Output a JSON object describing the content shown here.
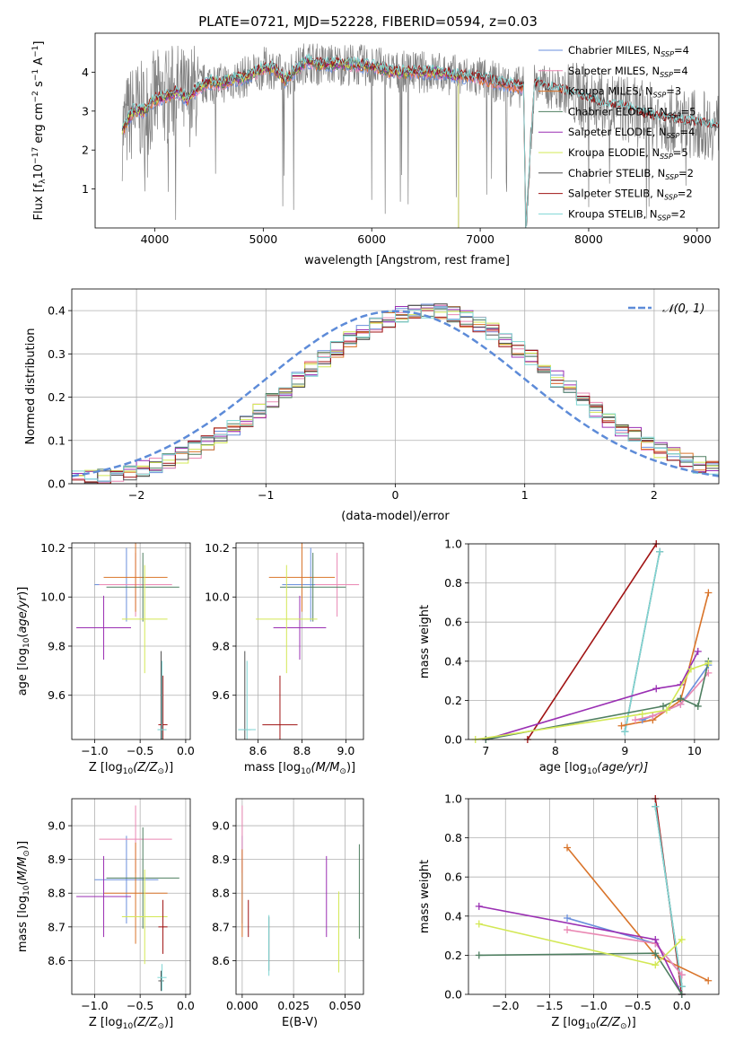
{
  "colors": {
    "Chabrier MILES": "#6a8fdc",
    "Salpeter MILES": "#ea88b3",
    "Kroupa MILES": "#d9742a",
    "Chabrier ELODIE": "#4f7f61",
    "Salpeter ELODIE": "#9a2fb3",
    "Kroupa ELODIE": "#d3e855",
    "Chabrier STELIB": "#505050",
    "Salpeter STELIB": "#a11414",
    "Kroupa STELIB": "#7fd6d4"
  },
  "chart_data": [
    {
      "id": "spectrum",
      "type": "line",
      "title": "PLATE=0721, MJD=52228, FIBERID=0594, z=0.03",
      "xlabel": "wavelength [Angstrom, rest frame]",
      "ylabel": "Flux [f_λ10^-17 erg cm^-2 s^-1 A^-1]",
      "xlim": [
        3450,
        9200
      ],
      "ylim": [
        0,
        5
      ],
      "xticks": [
        4000,
        5000,
        6000,
        7000,
        8000,
        9000
      ],
      "yticks": [
        1,
        2,
        3,
        4
      ],
      "legend_position": "top-right",
      "legend": [
        {
          "model": "Chabrier MILES",
          "label": "Chabrier MILES, N",
          "sub": "SSP",
          "suffix": "=4"
        },
        {
          "model": "Salpeter MILES",
          "label": "Salpeter MILES, N",
          "sub": "SSP",
          "suffix": "=4"
        },
        {
          "model": "Kroupa MILES",
          "label": "Kroupa MILES, N",
          "sub": "SSP",
          "suffix": "=3"
        },
        {
          "model": "Chabrier ELODIE",
          "label": "Chabrier ELODIE, N",
          "sub": "SSP",
          "suffix": "=5"
        },
        {
          "model": "Salpeter ELODIE",
          "label": "Salpeter ELODIE, N",
          "sub": "SSP",
          "suffix": "=4"
        },
        {
          "model": "Kroupa ELODIE",
          "label": "Kroupa ELODIE, N",
          "sub": "SSP",
          "suffix": "=5"
        },
        {
          "model": "Chabrier STELIB",
          "label": "Chabrier STELIB, N",
          "sub": "SSP",
          "suffix": "=2"
        },
        {
          "model": "Salpeter STELIB",
          "label": "Salpeter STELIB, N",
          "sub": "SSP",
          "suffix": "=2"
        },
        {
          "model": "Kroupa STELIB",
          "label": "Kroupa STELIB, N",
          "sub": "SSP",
          "suffix": "=2"
        }
      ],
      "data_color": "#808080",
      "continuum": {
        "x": [
          3700,
          3800,
          3900,
          4000,
          4100,
          4200,
          4300,
          4400,
          4500,
          4600,
          4700,
          4800,
          4900,
          5000,
          5100,
          5200,
          5300,
          5400,
          5500,
          5600,
          5800,
          6000,
          6200,
          6400,
          6600,
          6800,
          7000,
          7200,
          7400,
          7420,
          7500,
          7700,
          7900,
          8100,
          8300,
          8500,
          8700,
          8900,
          9200
        ],
        "y": [
          2.5,
          3.0,
          3.0,
          3.3,
          3.35,
          3.5,
          3.3,
          3.6,
          3.75,
          3.7,
          3.8,
          3.85,
          3.95,
          4.1,
          4.1,
          3.8,
          4.05,
          4.3,
          4.2,
          4.2,
          4.2,
          4.15,
          4.0,
          4.0,
          4.0,
          3.9,
          3.85,
          3.7,
          3.6,
          0.0,
          3.7,
          3.55,
          3.4,
          3.2,
          3.1,
          2.9,
          2.8,
          2.7,
          2.6
        ]
      }
    },
    {
      "id": "residuals",
      "type": "line",
      "xlabel": "(data-model)/error",
      "ylabel": "Normed distribution",
      "xlim": [
        -2.5,
        2.5
      ],
      "ylim": [
        0,
        0.45
      ],
      "xticks": [
        -2,
        -1,
        0,
        1,
        2
      ],
      "yticks": [
        0.0,
        0.1,
        0.2,
        0.3,
        0.4
      ],
      "legend_label": "𝒩(0, 1)",
      "legend_position": "top-right",
      "gauss_color": "#5d8bd8",
      "bin_width": 0.1,
      "grid": true
    },
    {
      "id": "age-z",
      "type": "scatter",
      "xlabel": "Z [log10(Z/Z⊙)]",
      "xlabel_text": "Z [log",
      "xlabel_sub": "10",
      "xlabel_rest": "(Z/Z",
      "xlabel_sun": "⊙",
      "xlabel_end": ")]",
      "ylabel": "age [log10(age/yr)]",
      "xlim": [
        -1.25,
        0.05
      ],
      "ylim": [
        9.42,
        10.22
      ],
      "xticks": [
        -1.0,
        -0.5,
        0.0
      ],
      "yticks": [
        9.6,
        9.8,
        10.0,
        10.2
      ],
      "points": [
        {
          "model": "Chabrier MILES",
          "x": -0.65,
          "y": 10.05,
          "xerr": 0.35,
          "yerr": 0.15
        },
        {
          "model": "Salpeter MILES",
          "x": -0.55,
          "y": 10.05,
          "xerr": 0.4,
          "yerr": 0.13
        },
        {
          "model": "Kroupa MILES",
          "x": -0.55,
          "y": 10.08,
          "xerr": 0.35,
          "yerr": 0.14
        },
        {
          "model": "Chabrier ELODIE",
          "x": -0.47,
          "y": 10.04,
          "xerr": 0.4,
          "yerr": 0.14
        },
        {
          "model": "Salpeter ELODIE",
          "x": -0.9,
          "y": 9.875,
          "xerr": 0.3,
          "yerr": 0.13
        },
        {
          "model": "Kroupa ELODIE",
          "x": -0.45,
          "y": 9.91,
          "xerr": 0.25,
          "yerr": 0.22
        },
        {
          "model": "Chabrier STELIB",
          "x": -0.27,
          "y": 9.46,
          "xerr": 0.03,
          "yerr": 0.32
        },
        {
          "model": "Salpeter STELIB",
          "x": -0.25,
          "y": 9.48,
          "xerr": 0.05,
          "yerr": 0.2
        },
        {
          "model": "Kroupa STELIB",
          "x": -0.26,
          "y": 9.46,
          "xerr": 0.05,
          "yerr": 0.28
        }
      ],
      "grid": true
    },
    {
      "id": "age-mass",
      "type": "scatter",
      "xlabel": "mass [log10(M/M⊙)]",
      "xlabel_text": "mass [log",
      "xlabel_sub": "10",
      "xlabel_rest": "(M/M",
      "xlabel_sun": "⊙",
      "xlabel_end": ")]",
      "xlim": [
        8.5,
        9.08
      ],
      "ylim": [
        9.42,
        10.22
      ],
      "xticks": [
        8.6,
        8.8,
        9.0
      ],
      "yticks": [
        9.6,
        9.8,
        10.0,
        10.2
      ],
      "points": [
        {
          "model": "Chabrier MILES",
          "x": 8.84,
          "y": 10.05,
          "xerr": 0.13,
          "yerr": 0.15
        },
        {
          "model": "Salpeter MILES",
          "x": 8.96,
          "y": 10.05,
          "xerr": 0.1,
          "yerr": 0.13
        },
        {
          "model": "Kroupa MILES",
          "x": 8.8,
          "y": 10.08,
          "xerr": 0.15,
          "yerr": 0.14
        },
        {
          "model": "Chabrier ELODIE",
          "x": 8.85,
          "y": 10.04,
          "xerr": 0.15,
          "yerr": 0.14
        },
        {
          "model": "Salpeter ELODIE",
          "x": 8.79,
          "y": 9.875,
          "xerr": 0.12,
          "yerr": 0.13
        },
        {
          "model": "Kroupa ELODIE",
          "x": 8.73,
          "y": 9.91,
          "xerr": 0.14,
          "yerr": 0.22
        },
        {
          "model": "Chabrier STELIB",
          "x": 8.54,
          "y": 9.46,
          "xerr": 0.03,
          "yerr": 0.32
        },
        {
          "model": "Salpeter STELIB",
          "x": 8.7,
          "y": 9.48,
          "xerr": 0.08,
          "yerr": 0.2
        },
        {
          "model": "Kroupa STELIB",
          "x": 8.55,
          "y": 9.46,
          "xerr": 0.04,
          "yerr": 0.28
        }
      ],
      "grid": true
    },
    {
      "id": "weight-age",
      "type": "line",
      "xlabel": "age [log10(age/yr)]",
      "xlabel_text": "age  [log",
      "xlabel_sub": "10",
      "xlabel_rest": "(age/yr)]",
      "ylabel": "mass weight",
      "xlim": [
        6.75,
        10.35
      ],
      "ylim": [
        0,
        1
      ],
      "xticks": [
        7,
        8,
        9,
        10
      ],
      "yticks": [
        0.0,
        0.2,
        0.4,
        0.6,
        0.8,
        1.0
      ],
      "series": [
        {
          "model": "Salpeter STELIB",
          "x": [
            7.6,
            9.45
          ],
          "y": [
            0.0,
            1.0
          ]
        },
        {
          "model": "Chabrier STELIB",
          "x": [
            9.0,
            9.5
          ],
          "y": [
            0.04,
            0.96
          ]
        },
        {
          "model": "Kroupa STELIB",
          "x": [
            9.0,
            9.5
          ],
          "y": [
            0.04,
            0.96
          ]
        },
        {
          "model": "Kroupa MILES",
          "x": [
            8.95,
            9.4,
            9.8,
            10.2
          ],
          "y": [
            0.07,
            0.1,
            0.2,
            0.75
          ]
        },
        {
          "model": "Chabrier MILES",
          "x": [
            9.25,
            9.4,
            9.8,
            10.2
          ],
          "y": [
            0.1,
            0.12,
            0.18,
            0.38
          ]
        },
        {
          "model": "Salpeter MILES",
          "x": [
            9.15,
            9.4,
            9.8,
            10.2
          ],
          "y": [
            0.1,
            0.12,
            0.18,
            0.34
          ]
        },
        {
          "model": "Salpeter ELODIE",
          "x": [
            7.0,
            9.45,
            9.8,
            10.05
          ],
          "y": [
            0.0,
            0.26,
            0.28,
            0.45
          ]
        },
        {
          "model": "Chabrier ELODIE",
          "x": [
            7.0,
            9.55,
            9.8,
            10.05,
            10.2
          ],
          "y": [
            0.0,
            0.17,
            0.21,
            0.17,
            0.4
          ]
        },
        {
          "model": "Kroupa ELODIE",
          "x": [
            6.85,
            9.25,
            9.6,
            9.95,
            10.2
          ],
          "y": [
            0.0,
            0.13,
            0.15,
            0.36,
            0.39
          ]
        }
      ],
      "grid": true
    },
    {
      "id": "mass-z",
      "type": "scatter",
      "xlabel": "Z [log10(Z/Z⊙)]",
      "xlabel_text": "Z [log",
      "xlabel_sub": "10",
      "xlabel_rest": "(Z/Z",
      "xlabel_sun": "⊙",
      "xlabel_end": ")]",
      "ylabel": "mass [log10(M/M⊙)]",
      "xlim": [
        -1.25,
        0.05
      ],
      "ylim": [
        8.5,
        9.08
      ],
      "xticks": [
        -1.0,
        -0.5,
        0.0
      ],
      "yticks": [
        8.6,
        8.7,
        8.8,
        8.9,
        9.0
      ],
      "points": [
        {
          "model": "Chabrier MILES",
          "x": -0.65,
          "y": 8.84,
          "xerr": 0.35,
          "yerr": 0.13
        },
        {
          "model": "Salpeter MILES",
          "x": -0.55,
          "y": 8.96,
          "xerr": 0.4,
          "yerr": 0.1
        },
        {
          "model": "Kroupa MILES",
          "x": -0.55,
          "y": 8.8,
          "xerr": 0.35,
          "yerr": 0.15
        },
        {
          "model": "Chabrier ELODIE",
          "x": -0.47,
          "y": 8.845,
          "xerr": 0.4,
          "yerr": 0.15
        },
        {
          "model": "Salpeter ELODIE",
          "x": -0.9,
          "y": 8.79,
          "xerr": 0.3,
          "yerr": 0.12
        },
        {
          "model": "Kroupa ELODIE",
          "x": -0.45,
          "y": 8.73,
          "xerr": 0.25,
          "yerr": 0.14
        },
        {
          "model": "Chabrier STELIB",
          "x": -0.27,
          "y": 8.54,
          "xerr": 0.03,
          "yerr": 0.03
        },
        {
          "model": "Salpeter STELIB",
          "x": -0.25,
          "y": 8.7,
          "xerr": 0.05,
          "yerr": 0.08
        },
        {
          "model": "Kroupa STELIB",
          "x": -0.26,
          "y": 8.55,
          "xerr": 0.05,
          "yerr": 0.04
        }
      ],
      "grid": true
    },
    {
      "id": "mass-ebv",
      "type": "scatter",
      "xlabel": "E(B-V)",
      "xlim": [
        -0.003,
        0.059
      ],
      "ylim": [
        8.5,
        9.08
      ],
      "xticks": [
        0.0,
        0.025,
        0.05
      ],
      "xtick_labels": [
        "0.000",
        "0.025",
        "0.050"
      ],
      "yticks": [
        8.6,
        8.7,
        8.8,
        8.9,
        9.0
      ],
      "points": [
        {
          "model": "Chabrier MILES",
          "x": 0.0,
          "y": 8.84,
          "xerr": 0,
          "yerr": 0.13
        },
        {
          "model": "Salpeter MILES",
          "x": 0.0,
          "y": 8.96,
          "xerr": 0,
          "yerr": 0.1
        },
        {
          "model": "Kroupa MILES",
          "x": 0.0,
          "y": 8.8,
          "xerr": 0,
          "yerr": 0.13
        },
        {
          "model": "Chabrier ELODIE",
          "x": 0.057,
          "y": 8.805,
          "xerr": 0,
          "yerr": 0.14
        },
        {
          "model": "Salpeter ELODIE",
          "x": 0.041,
          "y": 8.79,
          "xerr": 0,
          "yerr": 0.12
        },
        {
          "model": "Kroupa ELODIE",
          "x": 0.047,
          "y": 8.685,
          "xerr": 0,
          "yerr": 0.12
        },
        {
          "model": "Chabrier STELIB",
          "x": 0.013,
          "y": 8.65,
          "xerr": 0,
          "yerr": 0.08
        },
        {
          "model": "Salpeter STELIB",
          "x": 0.003,
          "y": 8.725,
          "xerr": 0,
          "yerr": 0.055
        },
        {
          "model": "Kroupa STELIB",
          "x": 0.013,
          "y": 8.645,
          "xerr": 0,
          "yerr": 0.09
        }
      ],
      "grid": true
    },
    {
      "id": "weight-z",
      "type": "line",
      "xlabel": "Z [log10(Z/Z⊙)]",
      "xlabel_text": "Z [log",
      "xlabel_sub": "10",
      "xlabel_rest": "(Z/Z",
      "xlabel_sun": "⊙",
      "xlabel_end": ")]",
      "ylabel": "mass weight",
      "xlim": [
        -2.42,
        0.42
      ],
      "ylim": [
        0,
        1
      ],
      "xticks": [
        -2.0,
        -1.5,
        -1.0,
        -0.5,
        0.0
      ],
      "yticks": [
        0.0,
        0.2,
        0.4,
        0.6,
        0.8,
        1.0
      ],
      "series": [
        {
          "model": "Salpeter STELIB",
          "x": [
            -0.3,
            0.0
          ],
          "y": [
            1.0,
            0.0
          ]
        },
        {
          "model": "Chabrier STELIB",
          "x": [
            -0.3,
            0.0
          ],
          "y": [
            0.96,
            0.04
          ]
        },
        {
          "model": "Kroupa STELIB",
          "x": [
            -0.3,
            0.0
          ],
          "y": [
            0.96,
            0.04
          ]
        },
        {
          "model": "Kroupa MILES",
          "x": [
            -1.3,
            -0.3,
            0.3
          ],
          "y": [
            0.75,
            0.2,
            0.07
          ]
        },
        {
          "model": "Chabrier MILES",
          "x": [
            -1.3,
            -0.3,
            0.0
          ],
          "y": [
            0.39,
            0.26,
            0.1
          ]
        },
        {
          "model": "Salpeter MILES",
          "x": [
            -1.3,
            -0.3,
            0.0
          ],
          "y": [
            0.33,
            0.26,
            0.1
          ]
        },
        {
          "model": "Salpeter ELODIE",
          "x": [
            -2.3,
            -0.3,
            0.0
          ],
          "y": [
            0.45,
            0.28,
            0.0
          ]
        },
        {
          "model": "Chabrier ELODIE",
          "x": [
            -2.3,
            -0.3,
            0.0
          ],
          "y": [
            0.2,
            0.21,
            0.0
          ]
        },
        {
          "model": "Kroupa ELODIE",
          "x": [
            -2.3,
            -0.3,
            0.0
          ],
          "y": [
            0.36,
            0.15,
            0.28
          ]
        }
      ],
      "grid": true
    }
  ]
}
